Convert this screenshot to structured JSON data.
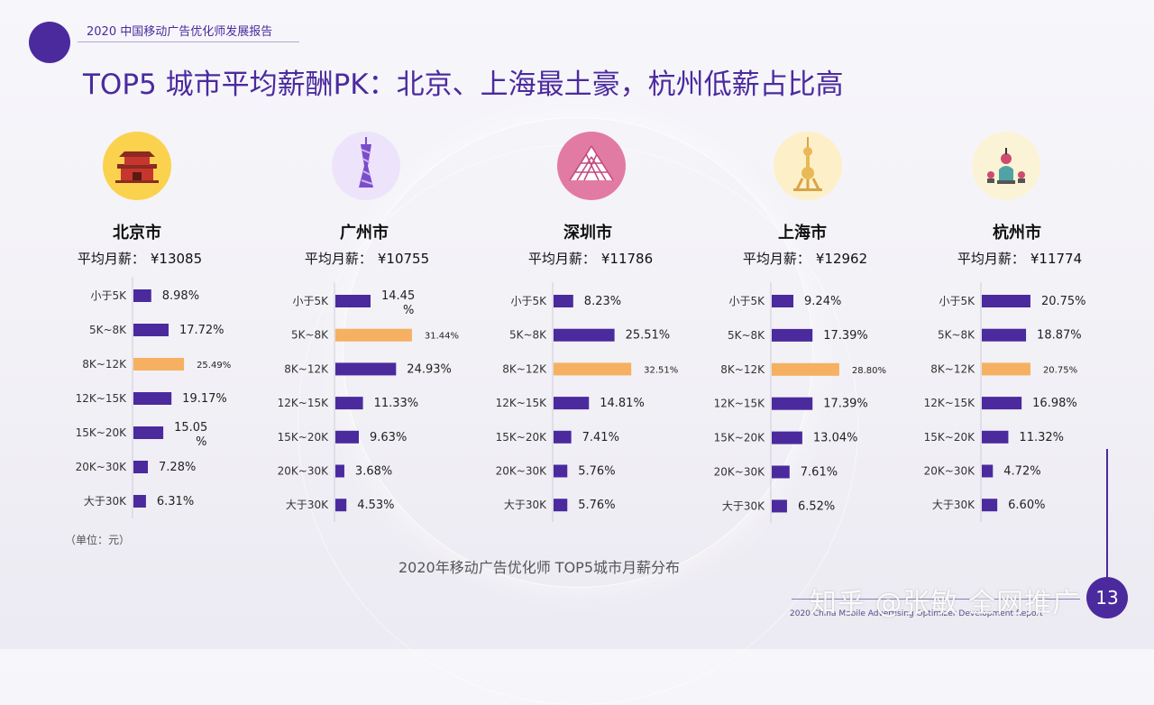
{
  "header": {
    "report_title": "2020 中国移动广告优化师发展报告"
  },
  "title": "TOP5 城市平均薪酬PK：北京、上海最土豪，杭州低薪占比高",
  "unit_note": "（单位：元）",
  "caption": "2020年移动广告优化师 TOP5城市月薪分布",
  "watermark": "知乎 @张敏 全网推广",
  "footer_text": "2020 China Mobile Advertising Optimizer Development Report",
  "page_number": "13",
  "colors": {
    "primary": "#4b2a9e",
    "highlight": "#f5b061",
    "bar": "#4b2a9e"
  },
  "categories": [
    "小于5K",
    "5K~8K",
    "8K~12K",
    "12K~15K",
    "15K~20K",
    "20K~30K",
    "大于30K"
  ],
  "cities": [
    {
      "name": "北京市",
      "salary_label": "平均月薪：",
      "salary": "¥13085",
      "icon": "beijing-gate-icon"
    },
    {
      "name": "广州市",
      "salary_label": "平均月薪：",
      "salary": "¥10755",
      "icon": "canton-tower-icon"
    },
    {
      "name": "深圳市",
      "salary_label": "平均月薪：",
      "salary": "¥11786",
      "icon": "pyramid-icon"
    },
    {
      "name": "上海市",
      "salary_label": "平均月薪：",
      "salary": "¥12962",
      "icon": "pearl-tower-icon"
    },
    {
      "name": "杭州市",
      "salary_label": "平均月薪：",
      "salary": "¥11774",
      "icon": "pagoda-icon"
    }
  ],
  "chart_data": [
    {
      "type": "bar",
      "orientation": "horizontal",
      "title": "北京市",
      "categories": [
        "小于5K",
        "5K~8K",
        "8K~12K",
        "12K~15K",
        "15K~20K",
        "20K~30K",
        "大于30K"
      ],
      "values": [
        8.98,
        17.72,
        25.49,
        19.17,
        15.05,
        7.28,
        6.31
      ],
      "labels": [
        "8.98%",
        "17.72%",
        "25.49%",
        "19.17%",
        "15.05 %",
        "7.28%",
        "6.31%"
      ],
      "highlight_index": 2,
      "unit": "%"
    },
    {
      "type": "bar",
      "orientation": "horizontal",
      "title": "广州市",
      "categories": [
        "小于5K",
        "5K~8K",
        "8K~12K",
        "12K~15K",
        "15K~20K",
        "20K~30K",
        "大于30K"
      ],
      "values": [
        14.45,
        31.44,
        24.93,
        11.33,
        9.63,
        3.68,
        4.53
      ],
      "labels": [
        "14.45 %",
        "31.44%",
        "24.93%",
        "11.33%",
        "9.63%",
        "3.68%",
        "4.53%"
      ],
      "highlight_index": 1,
      "unit": "%"
    },
    {
      "type": "bar",
      "orientation": "horizontal",
      "title": "深圳市",
      "categories": [
        "小于5K",
        "5K~8K",
        "8K~12K",
        "12K~15K",
        "15K~20K",
        "20K~30K",
        "大于30K"
      ],
      "values": [
        8.23,
        25.51,
        32.51,
        14.81,
        7.41,
        5.76,
        5.76
      ],
      "labels": [
        "8.23%",
        "25.51%",
        "32.51%",
        "14.81%",
        "7.41%",
        "5.76%",
        "5.76%"
      ],
      "highlight_index": 2,
      "unit": "%"
    },
    {
      "type": "bar",
      "orientation": "horizontal",
      "title": "上海市",
      "categories": [
        "小于5K",
        "5K~8K",
        "8K~12K",
        "12K~15K",
        "15K~20K",
        "20K~30K",
        "大于30K"
      ],
      "values": [
        9.24,
        17.39,
        28.8,
        17.39,
        13.04,
        7.61,
        6.52
      ],
      "labels": [
        "9.24%",
        "17.39%",
        "28.80%",
        "17.39%",
        "13.04%",
        "7.61%",
        "6.52%"
      ],
      "highlight_index": 2,
      "unit": "%"
    },
    {
      "type": "bar",
      "orientation": "horizontal",
      "title": "杭州市",
      "categories": [
        "小于5K",
        "5K~8K",
        "8K~12K",
        "12K~15K",
        "15K~20K",
        "20K~30K",
        "大于30K"
      ],
      "values": [
        20.75,
        18.87,
        20.75,
        16.98,
        11.32,
        4.72,
        6.6
      ],
      "labels": [
        "20.75%",
        "18.87%",
        "20.75%",
        "16.98%",
        "11.32%",
        "4.72%",
        "6.60%"
      ],
      "highlight_index": 2,
      "unit": "%"
    }
  ]
}
